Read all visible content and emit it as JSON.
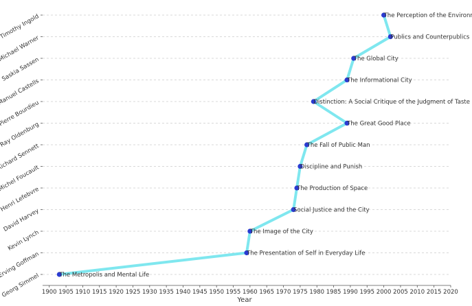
{
  "chart_data": {
    "type": "line",
    "title": "",
    "xlabel": "Year",
    "ylabel": "",
    "xlim": [
      1898,
      2020
    ],
    "xticks": [
      1900,
      1905,
      1910,
      1915,
      1920,
      1925,
      1930,
      1935,
      1940,
      1945,
      1950,
      1955,
      1960,
      1965,
      1970,
      1975,
      1980,
      1985,
      1990,
      1995,
      2000,
      2005,
      2010,
      2015,
      2020
    ],
    "grid": "horizontal dashed",
    "line_color": "#7fe7ef",
    "marker_color": "#2a3bd1",
    "categories": [
      "Georg Simmel",
      "Erving Goffman",
      "Kevin Lynch",
      "David Harvey",
      "Henri Lefebvre",
      "Michel Foucault",
      "Richard Sennett",
      "Ray Oldenburg",
      "Pierre Bourdieu",
      "Manuel Castells",
      "Saskia Sassen",
      "Michael Warner",
      "Timothy Ingold"
    ],
    "points": [
      {
        "author": "Georg Simmel",
        "year": 1903,
        "work": "The Metropolis and Mental Life"
      },
      {
        "author": "Erving Goffman",
        "year": 1959,
        "work": "The Presentation of Self in Everyday Life"
      },
      {
        "author": "Kevin Lynch",
        "year": 1960,
        "work": "The Image of the City"
      },
      {
        "author": "David Harvey",
        "year": 1973,
        "work": "Social Justice and the City"
      },
      {
        "author": "Henri Lefebvre",
        "year": 1974,
        "work": "The Production of Space"
      },
      {
        "author": "Michel Foucault",
        "year": 1975,
        "work": "Discipline and Punish"
      },
      {
        "author": "Richard Sennett",
        "year": 1977,
        "work": "The Fall of Public Man"
      },
      {
        "author": "Ray Oldenburg",
        "year": 1989,
        "work": "The Great Good Place"
      },
      {
        "author": "Pierre Bourdieu",
        "year": 1979,
        "work": "Distinction: A Social Critique of the Judgment of Taste"
      },
      {
        "author": "Manuel Castells",
        "year": 1989,
        "work": "The Informational City"
      },
      {
        "author": "Saskia Sassen",
        "year": 1991,
        "work": "The Global City"
      },
      {
        "author": "Michael Warner",
        "year": 2002,
        "work": "Publics and Counterpublics"
      },
      {
        "author": "Timothy Ingold",
        "year": 2000,
        "work": "The Perception of the Environment"
      }
    ]
  }
}
